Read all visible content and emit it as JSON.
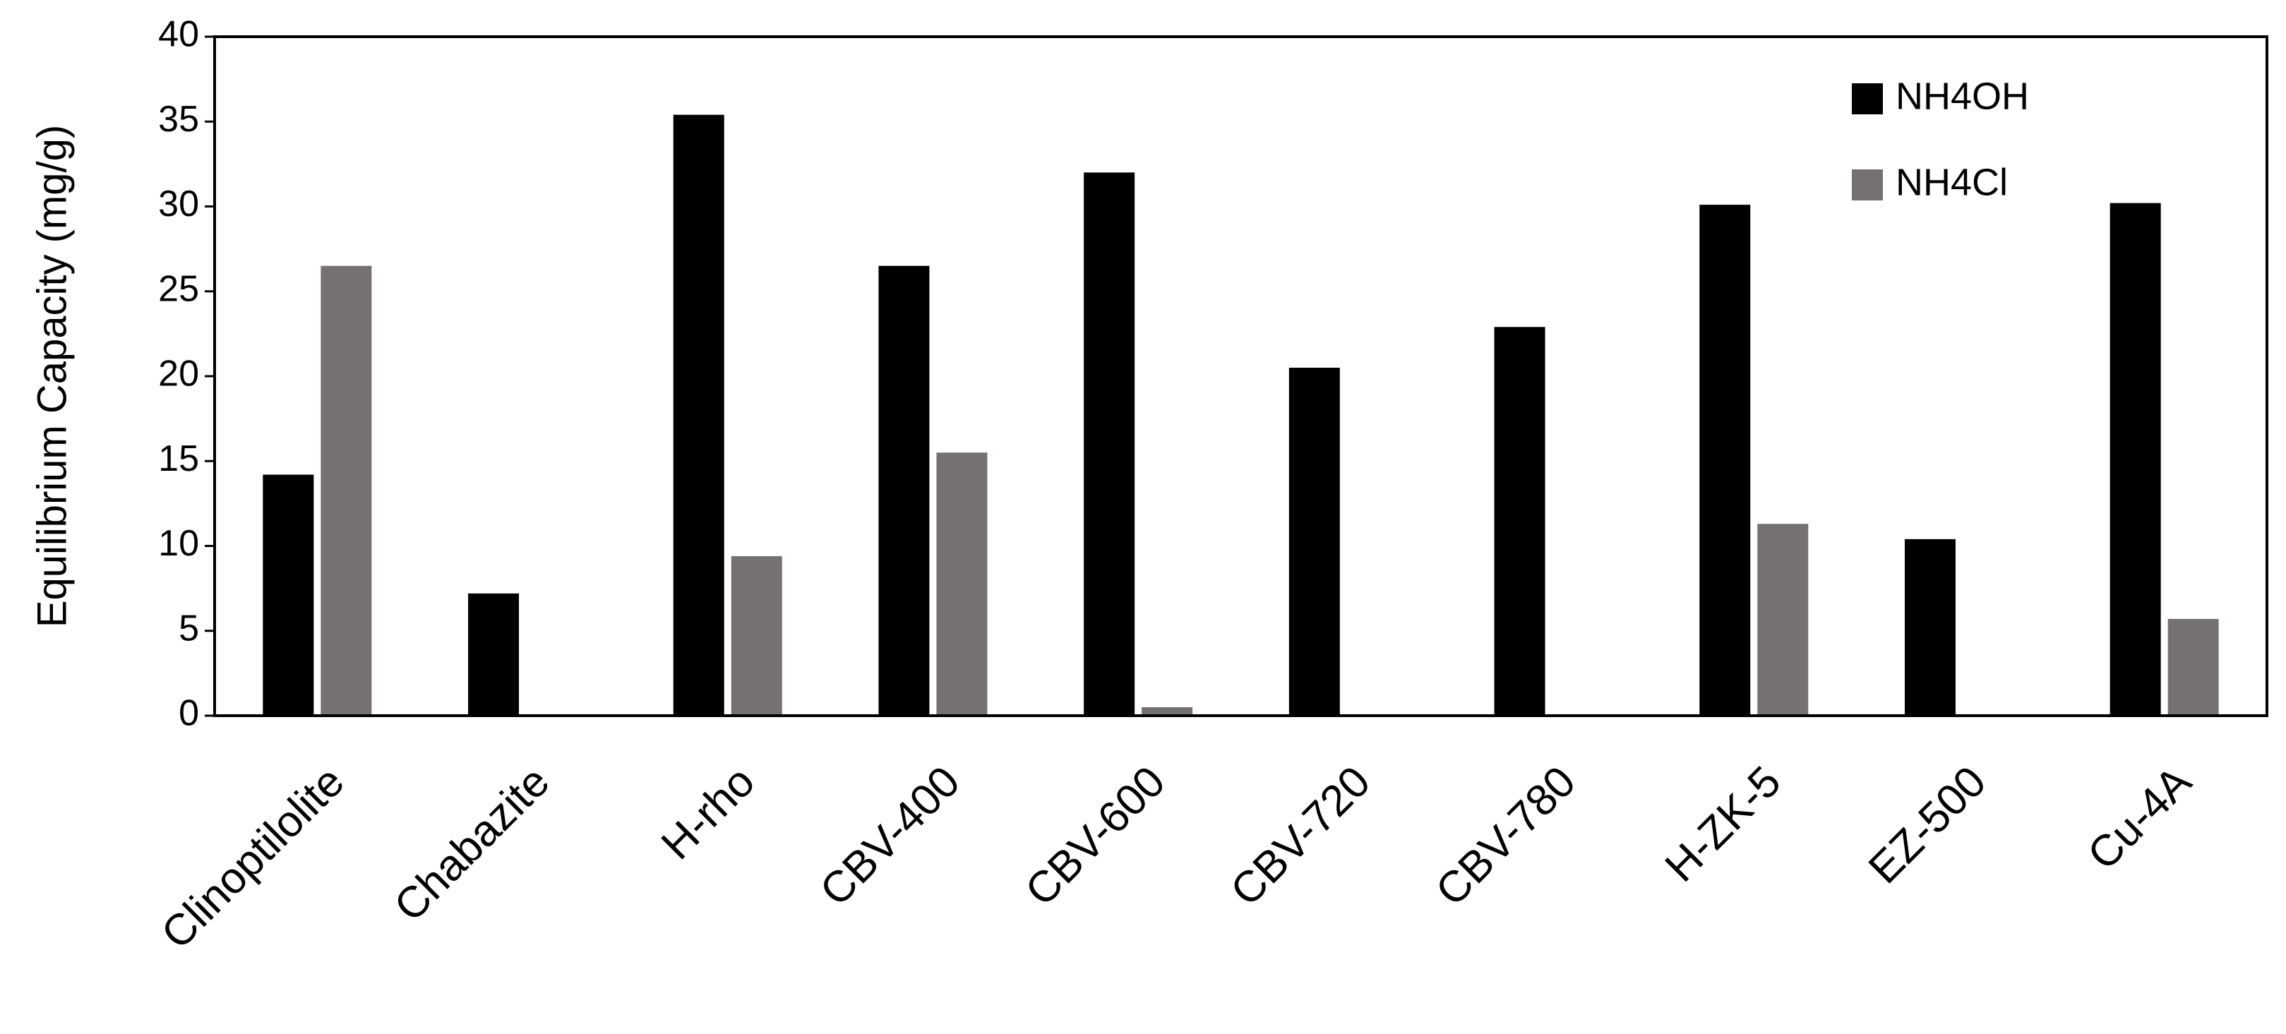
{
  "chart_data": {
    "type": "bar",
    "y_label": "Equilibrium Capacity (mg/g)",
    "categories": [
      "Clinoptilolite",
      "Chabazite",
      "H-rho",
      "CBV-400",
      "CBV-600",
      "CBV-720",
      "CBV-780",
      "H-ZK-5",
      "EZ-500",
      "Cu-4A"
    ],
    "series": [
      {
        "name": "NH4OH",
        "color": "#000000",
        "values": [
          14.2,
          7.2,
          35.4,
          26.5,
          32.0,
          20.5,
          22.9,
          30.1,
          10.4,
          30.2
        ]
      },
      {
        "name": "NH4Cl",
        "color": "#767171",
        "values": [
          26.5,
          0,
          9.4,
          15.5,
          0.5,
          0,
          0,
          11.3,
          0,
          5.7
        ]
      }
    ],
    "ylim": [
      0,
      40
    ],
    "yticks": [
      0,
      5,
      10,
      15,
      20,
      25,
      30,
      35,
      40
    ],
    "grid": false,
    "legend": "upper right"
  }
}
